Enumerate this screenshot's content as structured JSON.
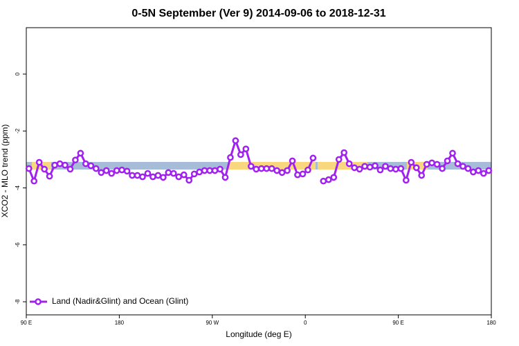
{
  "chart_data": {
    "type": "line",
    "title": "0-5N September (Ver 9)   2014-09-06 to 2018-12-31",
    "x_label": "Longitude (deg E)",
    "y_label": "XCO2 - MLO trend (ppm)",
    "x": [
      92.5,
      97.5,
      102.5,
      107.5,
      112.5,
      117.5,
      122.5,
      127.5,
      132.5,
      137.5,
      142.5,
      147.5,
      152.5,
      157.5,
      162.5,
      167.5,
      172.5,
      177.5,
      182.5,
      187.5,
      192.5,
      197.5,
      202.5,
      207.5,
      212.5,
      217.5,
      222.5,
      227.5,
      232.5,
      237.5,
      242.5,
      247.5,
      252.5,
      257.5,
      262.5,
      267.5,
      272.5,
      277.5,
      282.5,
      287.5,
      292.5,
      297.5,
      302.5,
      307.5,
      312.5,
      317.5,
      322.5,
      327.5,
      332.5,
      337.5,
      342.5,
      347.5,
      352.5,
      357.5,
      362.5,
      367.5,
      372.5,
      377.5,
      382.5,
      387.5,
      392.5,
      397.5,
      402.5,
      407.5,
      412.5,
      417.5,
      422.5,
      427.5,
      432.5,
      437.5,
      442.5,
      447.5,
      452.5,
      457.5,
      462.5,
      467.5,
      472.5,
      477.5,
      482.5,
      487.5,
      492.5,
      497.5,
      502.5,
      507.5,
      512.5,
      517.5,
      522.5,
      527.5,
      532.5,
      537.5
    ],
    "series": [
      {
        "name": "Land (Nadir&Glint) and Ocean (Glint)",
        "color": "#a020f0",
        "values": [
          -3.32,
          -3.76,
          -3.1,
          -3.34,
          -3.59,
          -3.2,
          -3.15,
          -3.2,
          -3.34,
          -3.02,
          -2.78,
          -3.15,
          -3.22,
          -3.32,
          -3.46,
          -3.39,
          -3.49,
          -3.39,
          -3.37,
          -3.41,
          -3.56,
          -3.56,
          -3.61,
          -3.49,
          -3.61,
          -3.56,
          -3.63,
          -3.46,
          -3.49,
          -3.61,
          -3.54,
          -3.73,
          -3.51,
          -3.44,
          -3.39,
          -3.39,
          -3.39,
          -3.34,
          -3.63,
          -2.93,
          -2.34,
          -2.83,
          -2.63,
          -3.24,
          -3.34,
          -3.32,
          -3.32,
          -3.32,
          -3.39,
          -3.46,
          -3.39,
          -3.05,
          -3.54,
          -3.51,
          -3.37,
          -2.95,
          null,
          -3.76,
          -3.71,
          -3.63,
          -3.0,
          -2.76,
          -3.15,
          -3.29,
          -3.34,
          -3.24,
          -3.27,
          -3.22,
          -3.37,
          -3.24,
          -3.32,
          -3.34,
          -3.32,
          -3.73,
          -3.1,
          -3.29,
          -3.56,
          -3.17,
          -3.12,
          -3.17,
          -3.32,
          -3.05,
          -2.78,
          -3.15,
          -3.24,
          -3.32,
          -3.44,
          -3.39,
          -3.49,
          -3.39
        ]
      }
    ],
    "xlim": [
      90,
      540
    ],
    "xticks": [
      {
        "value": 90,
        "label": "90 E"
      },
      {
        "value": 180,
        "label": "180"
      },
      {
        "value": 270,
        "label": "90 W"
      },
      {
        "value": 360,
        "label": "0"
      },
      {
        "value": 450,
        "label": "90 E"
      },
      {
        "value": 540,
        "label": "180"
      }
    ],
    "ylim": [
      -8.46,
      1.63
    ],
    "yticks": [
      0,
      -2,
      -4,
      -6,
      -8
    ],
    "legend": "bottom-left"
  }
}
